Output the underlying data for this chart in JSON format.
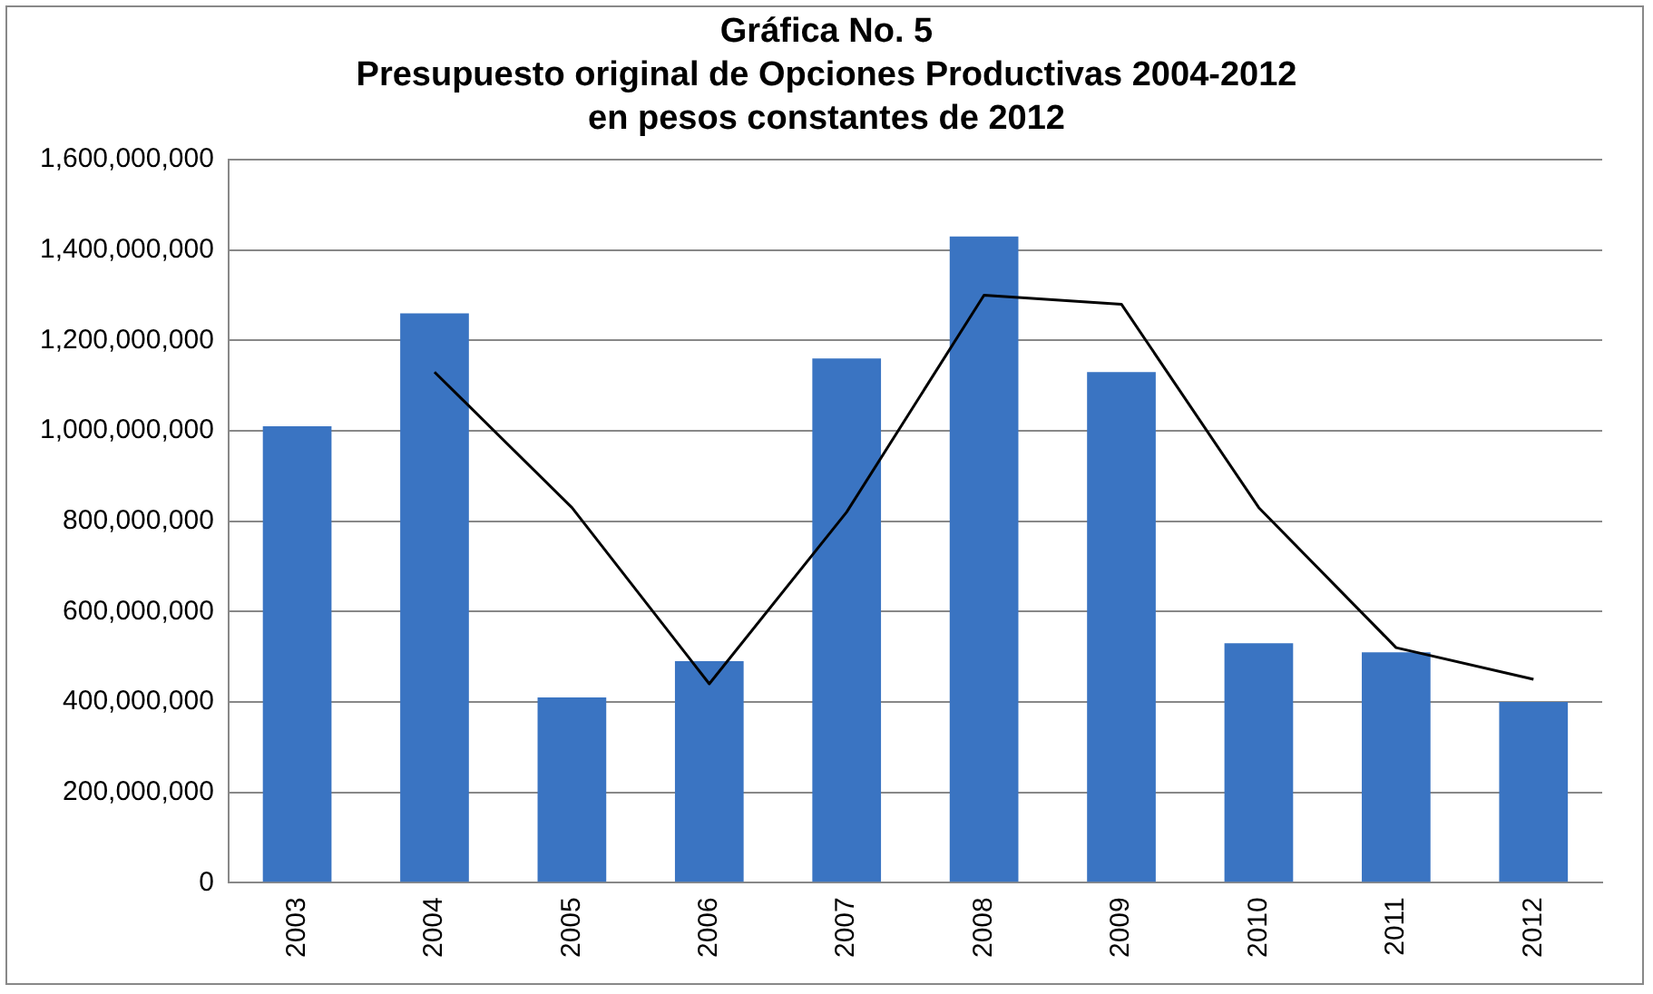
{
  "chart_data": {
    "type": "bar",
    "title": "Gráfica No. 5",
    "subtitle": "Presupuesto original de Opciones Productivas 2004-2012\nen pesos constantes de 2012",
    "categories": [
      "2003",
      "2004",
      "2005",
      "2006",
      "2007",
      "2008",
      "2009",
      "2010",
      "2011",
      "2012"
    ],
    "series": [
      {
        "color": "#3a74c2",
        "values": [
          1010000000,
          1260000000,
          410000000,
          490000000,
          1160000000,
          1430000000,
          1130000000,
          530000000,
          510000000,
          400000000
        ]
      },
      {
        "type": "line",
        "color": "#000000",
        "marker": "none",
        "values": [
          null,
          1130000000,
          830000000,
          440000000,
          820000000,
          1300000000,
          1280000000,
          830000000,
          520000000,
          450000000
        ]
      }
    ],
    "ylim": [
      0,
      1600000000
    ],
    "yticks": [
      0,
      {
        "value": 200000000,
        "label": "200,000,000"
      },
      {
        "value": 400000000,
        "label": "400,000,000"
      },
      {
        "value": 600000000,
        "label": "600,000,000"
      },
      {
        "value": 800000000,
        "label": "800,000,000"
      },
      {
        "value": 1000000000,
        "label": "1,000,000,000"
      },
      {
        "value": 1200000000,
        "label": "1,200,000,000"
      },
      {
        "value": 1400000000,
        "label": "1,400,000,000"
      },
      {
        "value": 1600000000,
        "label": "1,600,000,000"
      }
    ],
    "grid": "y",
    "legend": false
  }
}
